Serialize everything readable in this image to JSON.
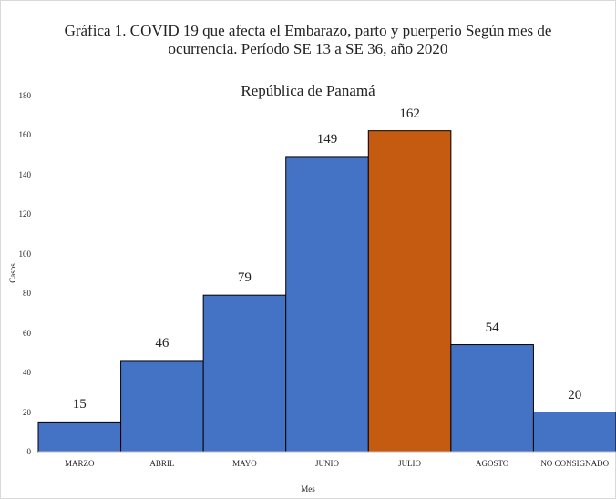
{
  "chart_data": {
    "type": "bar",
    "title": "Gráfica 1.  COVID 19  que afecta el Embarazo, parto y puerperio Según mes de ocurrencia.  Período SE 13 a SE 36, año 2020",
    "subtitle": "República de Panamá",
    "x_label": "Mes",
    "y_label": "Casos",
    "categories": [
      "MARZO",
      "ABRIL",
      "MAYO",
      "JUNIO",
      "JULIO",
      "AGOSTO",
      "NO CONSIGNADO"
    ],
    "values": [
      15,
      46,
      79,
      149,
      162,
      54,
      20
    ],
    "colors": [
      "#4472c4",
      "#4472c4",
      "#4472c4",
      "#4472c4",
      "#c55a11",
      "#4472c4",
      "#4472c4"
    ],
    "ylim": [
      0,
      180
    ],
    "yticks": [
      0,
      20,
      40,
      60,
      80,
      100,
      120,
      140,
      160,
      180
    ],
    "grid": false
  }
}
